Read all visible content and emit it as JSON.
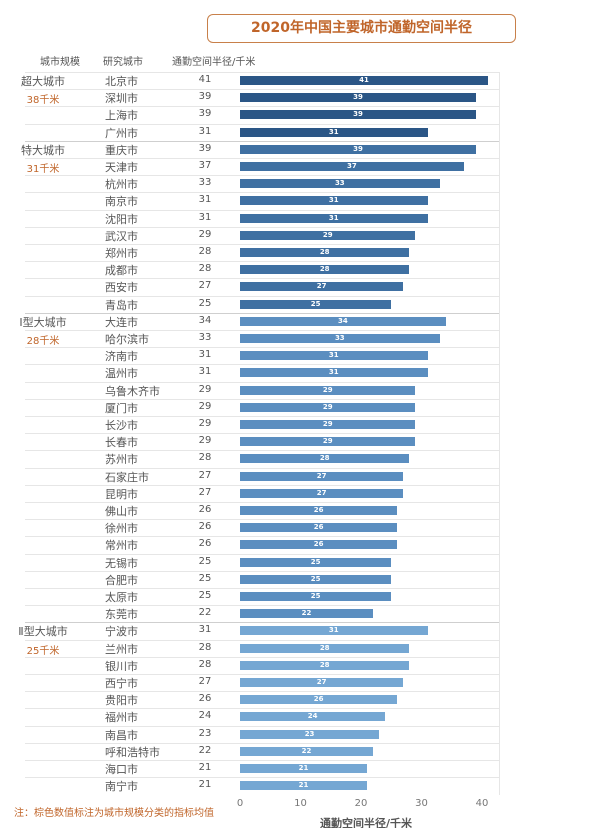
{
  "chart_data": {
    "type": "bar",
    "title": "2020年中国主要城市通勤空间半径",
    "headers": [
      "城市规模",
      "研究城市",
      "通勤空间半径/千米"
    ],
    "xlabel": "通勤空间半径/千米",
    "xlim": [
      0,
      43
    ],
    "xticks": [
      "0",
      "10",
      "20",
      "30",
      "40"
    ],
    "note": "注：棕色数值标注为城市规模分类的指标均值",
    "groups": [
      {
        "name": "超大城市",
        "avg": "38千米",
        "color": "#2b5686",
        "cities": [
          "北京市",
          "深圳市",
          "上海市",
          "广州市"
        ],
        "values": [
          41,
          39,
          39,
          31
        ]
      },
      {
        "name": "特大城市",
        "avg": "31千米",
        "color": "#3f70a2",
        "cities": [
          "重庆市",
          "天津市",
          "杭州市",
          "南京市",
          "沈阳市",
          "武汉市",
          "郑州市",
          "成都市",
          "西安市",
          "青岛市"
        ],
        "values": [
          39,
          37,
          33,
          31,
          31,
          29,
          28,
          28,
          27,
          25
        ]
      },
      {
        "name": "Ⅰ型大城市",
        "avg": "28千米",
        "color": "#5b8ec0",
        "cities": [
          "大连市",
          "哈尔滨市",
          "济南市",
          "温州市",
          "乌鲁木齐市",
          "厦门市",
          "长沙市",
          "长春市",
          "苏州市",
          "石家庄市",
          "昆明市",
          "佛山市",
          "徐州市",
          "常州市",
          "无锡市",
          "合肥市",
          "太原市",
          "东莞市"
        ],
        "values": [
          34,
          33,
          31,
          31,
          29,
          29,
          29,
          29,
          28,
          27,
          27,
          26,
          26,
          26,
          25,
          25,
          25,
          22
        ]
      },
      {
        "name": "Ⅱ型大城市",
        "avg": "25千米",
        "color": "#75a7d3",
        "cities": [
          "宁波市",
          "兰州市",
          "银川市",
          "西宁市",
          "贵阳市",
          "福州市",
          "南昌市",
          "呼和浩特市",
          "海口市",
          "南宁市"
        ],
        "values": [
          31,
          28,
          28,
          27,
          26,
          24,
          23,
          22,
          21,
          21
        ]
      }
    ]
  }
}
